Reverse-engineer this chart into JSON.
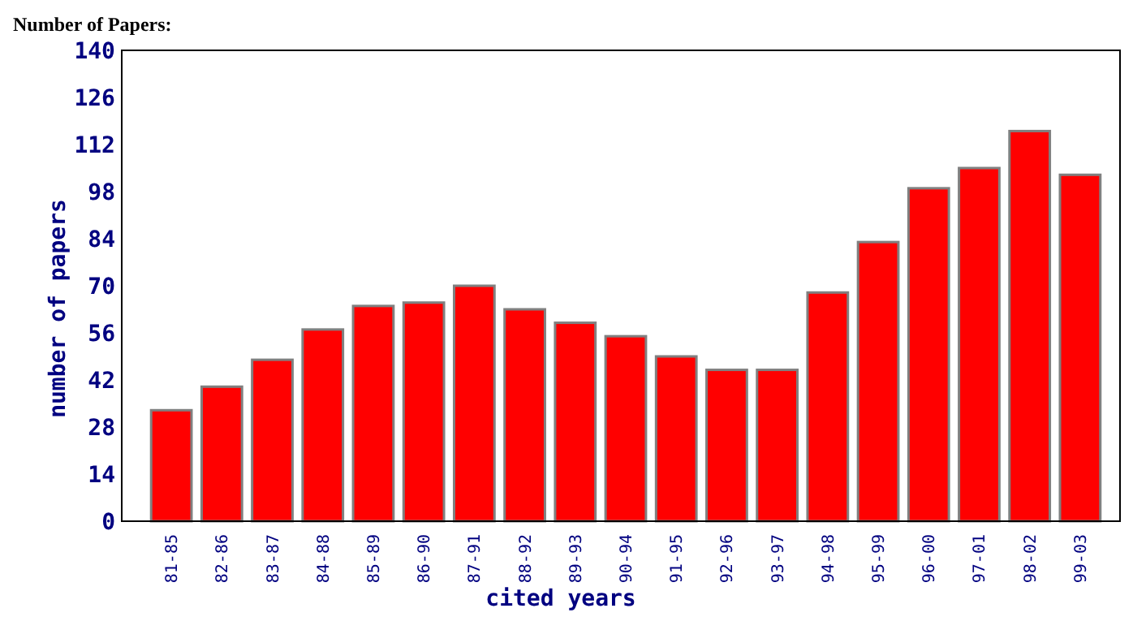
{
  "chart_data": {
    "type": "bar",
    "title": "Number of Papers:",
    "xlabel": "cited years",
    "ylabel": "number of papers",
    "categories": [
      "81-85",
      "82-86",
      "83-87",
      "84-88",
      "85-89",
      "86-90",
      "87-91",
      "88-92",
      "89-93",
      "90-94",
      "91-95",
      "92-96",
      "93-97",
      "94-98",
      "95-99",
      "96-00",
      "97-01",
      "98-02",
      "99-03"
    ],
    "values": [
      33,
      40,
      48,
      57,
      64,
      65,
      70,
      63,
      59,
      55,
      49,
      45,
      45,
      68,
      83,
      99,
      105,
      116,
      103
    ],
    "color": "#ff0000",
    "ylim": [
      0,
      140
    ],
    "yticks": [
      0,
      14,
      28,
      42,
      56,
      70,
      84,
      98,
      112,
      126,
      140
    ]
  }
}
